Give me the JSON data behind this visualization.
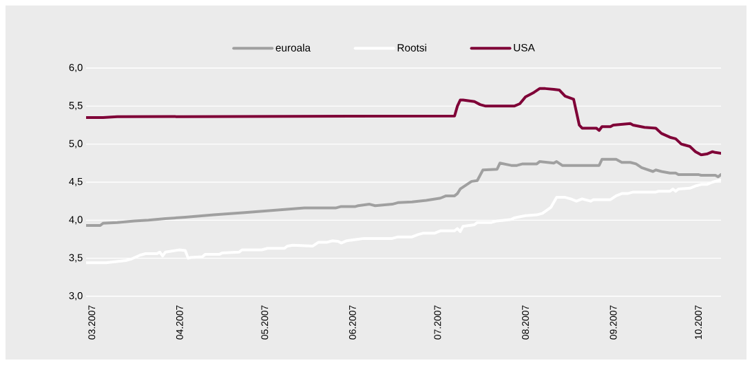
{
  "chart_data": {
    "type": "line",
    "legend": "top",
    "grid": "y",
    "xlim": [
      "2007-02-27",
      "2007-10-09"
    ],
    "xticks": [
      {
        "value": "2007-03-01",
        "label": "03.2007"
      },
      {
        "value": "2007-04-01",
        "label": "04.2007"
      },
      {
        "value": "2007-05-01",
        "label": "05.2007"
      },
      {
        "value": "2007-06-01",
        "label": "06.2007"
      },
      {
        "value": "2007-07-01",
        "label": "07.2007"
      },
      {
        "value": "2007-08-01",
        "label": "08.2007"
      },
      {
        "value": "2007-09-01",
        "label": "09.2007"
      },
      {
        "value": "2007-10-01",
        "label": "10.2007"
      }
    ],
    "ylim": [
      3,
      6
    ],
    "yticks": [
      {
        "value": 3,
        "label": "3,0"
      },
      {
        "value": 3.5,
        "label": "3,5"
      },
      {
        "value": 4,
        "label": "4,0"
      },
      {
        "value": 4.5,
        "label": "4,5"
      },
      {
        "value": 5,
        "label": "5,0"
      },
      {
        "value": 5.5,
        "label": "5,5"
      },
      {
        "value": 6,
        "label": "6,0"
      }
    ],
    "series": [
      {
        "name": "euroala",
        "color": "#a0a0a0",
        "x": [
          "2007-02-27",
          "2007-03-04",
          "2007-03-05",
          "2007-03-10",
          "2007-03-16",
          "2007-03-21",
          "2007-03-27",
          "2007-04-03",
          "2007-04-13",
          "2007-04-24",
          "2007-05-08",
          "2007-05-15",
          "2007-05-26",
          "2007-05-28",
          "2007-06-02",
          "2007-06-03",
          "2007-06-07",
          "2007-06-09",
          "2007-06-15",
          "2007-06-17",
          "2007-06-22",
          "2007-06-27",
          "2007-07-02",
          "2007-07-04",
          "2007-07-07",
          "2007-07-08",
          "2007-07-09",
          "2007-07-13",
          "2007-07-15",
          "2007-07-17",
          "2007-07-22",
          "2007-07-23",
          "2007-07-27",
          "2007-07-29",
          "2007-07-31",
          "2007-08-05",
          "2007-08-06",
          "2007-08-11",
          "2007-08-12",
          "2007-08-14",
          "2007-08-27",
          "2007-08-28",
          "2007-09-02",
          "2007-09-04",
          "2007-09-07",
          "2007-09-09",
          "2007-09-11",
          "2007-09-15",
          "2007-09-16",
          "2007-09-18",
          "2007-09-21",
          "2007-09-23",
          "2007-09-24",
          "2007-10-01",
          "2007-10-02",
          "2007-10-07",
          "2007-10-08",
          "2007-10-09"
        ],
        "values": [
          3.93,
          3.93,
          3.96,
          3.97,
          3.99,
          4.0,
          4.02,
          4.04,
          4.07,
          4.1,
          4.14,
          4.16,
          4.16,
          4.18,
          4.18,
          4.19,
          4.21,
          4.19,
          4.21,
          4.23,
          4.24,
          4.26,
          4.29,
          4.32,
          4.32,
          4.35,
          4.41,
          4.51,
          4.52,
          4.66,
          4.67,
          4.75,
          4.72,
          4.72,
          4.74,
          4.74,
          4.77,
          4.75,
          4.77,
          4.72,
          4.72,
          4.8,
          4.8,
          4.76,
          4.76,
          4.74,
          4.69,
          4.64,
          4.66,
          4.64,
          4.62,
          4.62,
          4.6,
          4.6,
          4.59,
          4.59,
          4.57,
          4.6
        ]
      },
      {
        "name": "Rootsi",
        "color": "#ffffff",
        "x": [
          "2007-02-27",
          "2007-03-06",
          "2007-03-13",
          "2007-03-15",
          "2007-03-18",
          "2007-03-20",
          "2007-03-24",
          "2007-03-25",
          "2007-03-26",
          "2007-03-27",
          "2007-04-01",
          "2007-04-03",
          "2007-04-04",
          "2007-04-05",
          "2007-04-09",
          "2007-04-10",
          "2007-04-15",
          "2007-04-16",
          "2007-04-22",
          "2007-04-23",
          "2007-04-30",
          "2007-05-02",
          "2007-05-08",
          "2007-05-09",
          "2007-05-11",
          "2007-05-18",
          "2007-05-20",
          "2007-05-23",
          "2007-05-25",
          "2007-05-27",
          "2007-05-28",
          "2007-05-30",
          "2007-06-03",
          "2007-06-05",
          "2007-06-15",
          "2007-06-17",
          "2007-06-22",
          "2007-06-24",
          "2007-06-26",
          "2007-06-30",
          "2007-07-02",
          "2007-07-07",
          "2007-07-08",
          "2007-07-09",
          "2007-07-10",
          "2007-07-14",
          "2007-07-15",
          "2007-07-20",
          "2007-07-22",
          "2007-07-27",
          "2007-07-28",
          "2007-08-01",
          "2007-08-05",
          "2007-08-07",
          "2007-08-10",
          "2007-08-12",
          "2007-08-15",
          "2007-08-17",
          "2007-08-19",
          "2007-08-21",
          "2007-08-24",
          "2007-08-25",
          "2007-08-31",
          "2007-09-02",
          "2007-09-04",
          "2007-09-06",
          "2007-09-08",
          "2007-09-16",
          "2007-09-17",
          "2007-09-21",
          "2007-09-22",
          "2007-09-23",
          "2007-09-24",
          "2007-09-28",
          "2007-09-30",
          "2007-10-02",
          "2007-10-04",
          "2007-10-06",
          "2007-10-08",
          "2007-10-09"
        ],
        "values": [
          3.44,
          3.44,
          3.47,
          3.49,
          3.54,
          3.56,
          3.56,
          3.58,
          3.53,
          3.58,
          3.61,
          3.6,
          3.5,
          3.51,
          3.52,
          3.55,
          3.55,
          3.57,
          3.58,
          3.61,
          3.61,
          3.63,
          3.63,
          3.66,
          3.67,
          3.66,
          3.71,
          3.71,
          3.73,
          3.72,
          3.7,
          3.73,
          3.75,
          3.76,
          3.76,
          3.78,
          3.78,
          3.81,
          3.83,
          3.83,
          3.86,
          3.86,
          3.89,
          3.85,
          3.92,
          3.94,
          3.97,
          3.97,
          3.99,
          4.01,
          4.03,
          4.06,
          4.07,
          4.09,
          4.17,
          4.3,
          4.3,
          4.28,
          4.25,
          4.28,
          4.25,
          4.27,
          4.27,
          4.32,
          4.35,
          4.35,
          4.37,
          4.37,
          4.38,
          4.38,
          4.41,
          4.38,
          4.41,
          4.42,
          4.45,
          4.47,
          4.47,
          4.5,
          4.52,
          4.53
        ]
      },
      {
        "name": "USA",
        "color": "#7f0037",
        "x": [
          "2007-02-27",
          "2007-03-05",
          "2007-03-10",
          "2007-07-07",
          "2007-07-08",
          "2007-07-09",
          "2007-07-10",
          "2007-07-14",
          "2007-07-16",
          "2007-07-18",
          "2007-07-28",
          "2007-07-30",
          "2007-08-01",
          "2007-08-04",
          "2007-08-06",
          "2007-08-08",
          "2007-08-11",
          "2007-08-13",
          "2007-08-15",
          "2007-08-18",
          "2007-08-20",
          "2007-08-21",
          "2007-08-26",
          "2007-08-27",
          "2007-08-28",
          "2007-08-31",
          "2007-09-01",
          "2007-09-07",
          "2007-09-08",
          "2007-09-12",
          "2007-09-16",
          "2007-09-18",
          "2007-09-21",
          "2007-09-23",
          "2007-09-25",
          "2007-09-26",
          "2007-09-28",
          "2007-09-30",
          "2007-10-02",
          "2007-10-04",
          "2007-10-06",
          "2007-10-07",
          "2007-10-09"
        ],
        "values": [
          5.35,
          5.35,
          5.36,
          5.37,
          5.5,
          5.58,
          5.58,
          5.56,
          5.52,
          5.5,
          5.5,
          5.53,
          5.62,
          5.68,
          5.73,
          5.73,
          5.72,
          5.71,
          5.63,
          5.59,
          5.25,
          5.21,
          5.21,
          5.18,
          5.23,
          5.23,
          5.25,
          5.27,
          5.25,
          5.22,
          5.21,
          5.14,
          5.09,
          5.07,
          5.0,
          4.99,
          4.97,
          4.9,
          4.86,
          4.87,
          4.9,
          4.89,
          4.88
        ]
      }
    ]
  }
}
